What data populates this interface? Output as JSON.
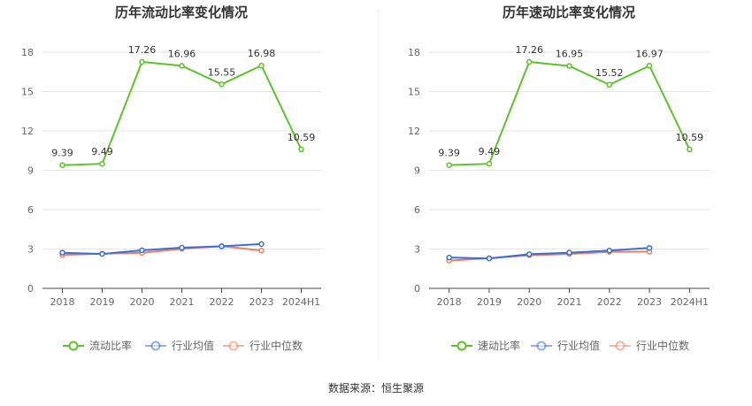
{
  "source_text": "数据来源：恒生聚源",
  "colors": {
    "main": "#5ec22b",
    "avg": "#3a6fd8",
    "median": "#ef7f59",
    "grid": "#e6e6e6",
    "axis": "#444444",
    "divider": "#eeeeee"
  },
  "chart_data": [
    {
      "type": "line",
      "title": "历年流动比率变化情况",
      "categories": [
        "2018",
        "2019",
        "2020",
        "2021",
        "2022",
        "2023",
        "2024H1"
      ],
      "ylim": [
        0,
        18
      ],
      "yticks": [
        0,
        3,
        6,
        9,
        12,
        15,
        18
      ],
      "grid": true,
      "legend_position": "bottom",
      "series": [
        {
          "name": "流动比率",
          "color": "main",
          "values": [
            9.39,
            9.49,
            17.26,
            16.96,
            15.55,
            16.98,
            10.59
          ],
          "labels": true
        },
        {
          "name": "行业均值",
          "color": "avg",
          "values": [
            2.72,
            2.62,
            2.9,
            3.1,
            3.2,
            3.38,
            null
          ],
          "labels": false
        },
        {
          "name": "行业中位数",
          "color": "median",
          "values": [
            2.55,
            2.65,
            2.7,
            3.02,
            3.22,
            2.88,
            null
          ],
          "labels": false
        }
      ]
    },
    {
      "type": "line",
      "title": "历年速动比率变化情况",
      "categories": [
        "2018",
        "2019",
        "2020",
        "2021",
        "2022",
        "2023",
        "2024H1"
      ],
      "ylim": [
        0,
        18
      ],
      "yticks": [
        0,
        3,
        6,
        9,
        12,
        15,
        18
      ],
      "grid": true,
      "legend_position": "bottom",
      "series": [
        {
          "name": "速动比率",
          "color": "main",
          "values": [
            9.39,
            9.49,
            17.26,
            16.95,
            15.52,
            16.97,
            10.59
          ],
          "labels": true
        },
        {
          "name": "行业均值",
          "color": "avg",
          "values": [
            2.35,
            2.28,
            2.6,
            2.72,
            2.88,
            3.08,
            null
          ],
          "labels": false
        },
        {
          "name": "行业中位数",
          "color": "median",
          "values": [
            2.12,
            2.3,
            2.52,
            2.62,
            2.78,
            2.8,
            null
          ],
          "labels": false
        }
      ]
    }
  ]
}
